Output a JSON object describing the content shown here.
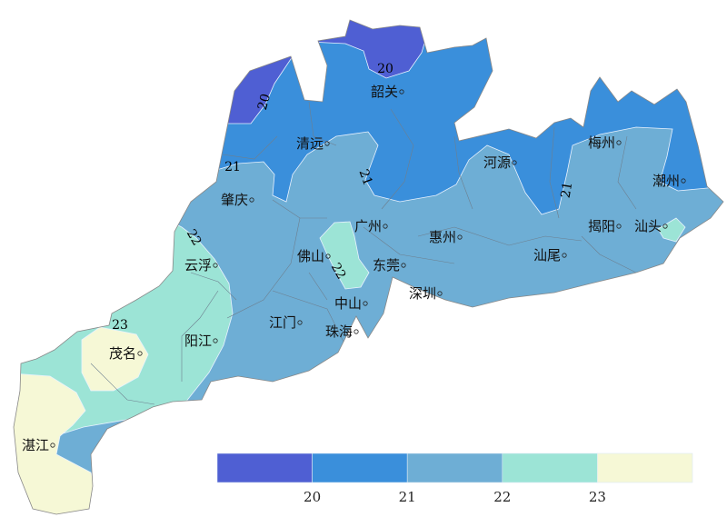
{
  "map": {
    "cities": [
      "韶关",
      "清远",
      "梅州",
      "河源",
      "潮州",
      "肇庆",
      "广州",
      "揭阳",
      "汕头",
      "惠州",
      "佛山",
      "云浮",
      "东莞",
      "汕尾",
      "深圳",
      "中山",
      "江门",
      "珠海",
      "阳江",
      "茂名",
      "湛江"
    ],
    "contour_labels": [
      "20",
      "20",
      "21",
      "21",
      "21",
      "22",
      "22",
      "23"
    ]
  },
  "legend": {
    "ticks": [
      "20",
      "21",
      "22",
      "23"
    ],
    "colors": [
      "#4f5fd3",
      "#3a8fdb",
      "#6eaed5",
      "#9ce4d6",
      "#f6f8d6"
    ]
  },
  "colors": {
    "band_below_20": "#4f5fd3",
    "band_20_21": "#3a8fdb",
    "band_21_22": "#6eaed5",
    "band_22_23": "#9ce4d6",
    "band_above_23": "#f6f8d6",
    "contour": "#e8f2ff",
    "boundary": "#7a7a7a"
  }
}
